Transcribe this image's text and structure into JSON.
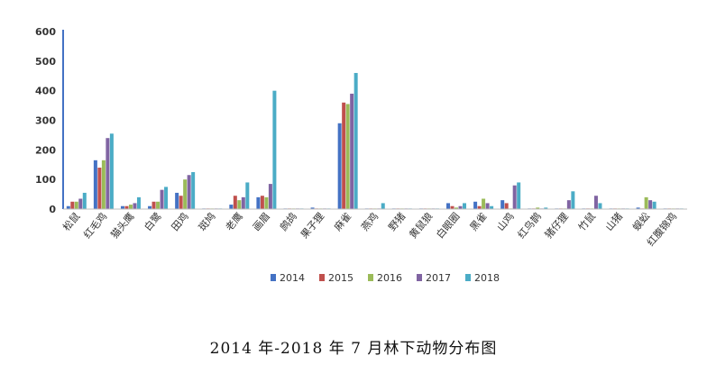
{
  "caption": "2014 年-2018 年 7 月林下动物分布图",
  "chart_data": {
    "type": "bar",
    "title": "",
    "xlabel": "",
    "ylabel": "",
    "ylim": [
      0,
      600
    ],
    "yticks": [
      0,
      100,
      200,
      300,
      400,
      500,
      600
    ],
    "grid": false,
    "legend_position": "bottom",
    "categories": [
      "松鼠",
      "红毛鸡",
      "猫头鹰",
      "白鹭",
      "田鸡",
      "斑鸠",
      "老鹰",
      "画眉",
      "鹧鸪",
      "果子狸",
      "麻雀",
      "燕鸡",
      "野猪",
      "黄鼠狼",
      "白眼圈",
      "黑雀",
      "山鸡",
      "红鸟鹊",
      "猪仔狸",
      "竹鼠",
      "山猪",
      "蜈蚣",
      "红腹锦鸡"
    ],
    "series": [
      {
        "name": "2014",
        "color": "#4472c4",
        "values": [
          10,
          165,
          10,
          10,
          55,
          2,
          15,
          40,
          2,
          5,
          290,
          2,
          2,
          2,
          20,
          25,
          30,
          2,
          2,
          2,
          2,
          5,
          2
        ]
      },
      {
        "name": "2015",
        "color": "#c0504d",
        "values": [
          25,
          140,
          10,
          25,
          45,
          2,
          45,
          45,
          2,
          2,
          360,
          2,
          2,
          2,
          10,
          10,
          20,
          2,
          2,
          2,
          2,
          2,
          2
        ]
      },
      {
        "name": "2016",
        "color": "#9bbb59",
        "values": [
          25,
          165,
          15,
          25,
          100,
          2,
          30,
          40,
          2,
          2,
          355,
          2,
          2,
          2,
          5,
          35,
          2,
          5,
          2,
          2,
          2,
          40,
          2
        ]
      },
      {
        "name": "2017",
        "color": "#8064a2",
        "values": [
          35,
          240,
          20,
          65,
          115,
          2,
          40,
          85,
          2,
          2,
          390,
          2,
          2,
          2,
          10,
          20,
          80,
          2,
          30,
          45,
          2,
          30,
          2
        ]
      },
      {
        "name": "2018",
        "color": "#4bacc6",
        "values": [
          55,
          255,
          40,
          75,
          125,
          2,
          90,
          400,
          2,
          2,
          460,
          20,
          2,
          2,
          20,
          10,
          90,
          5,
          60,
          20,
          2,
          25,
          2
        ]
      }
    ]
  }
}
